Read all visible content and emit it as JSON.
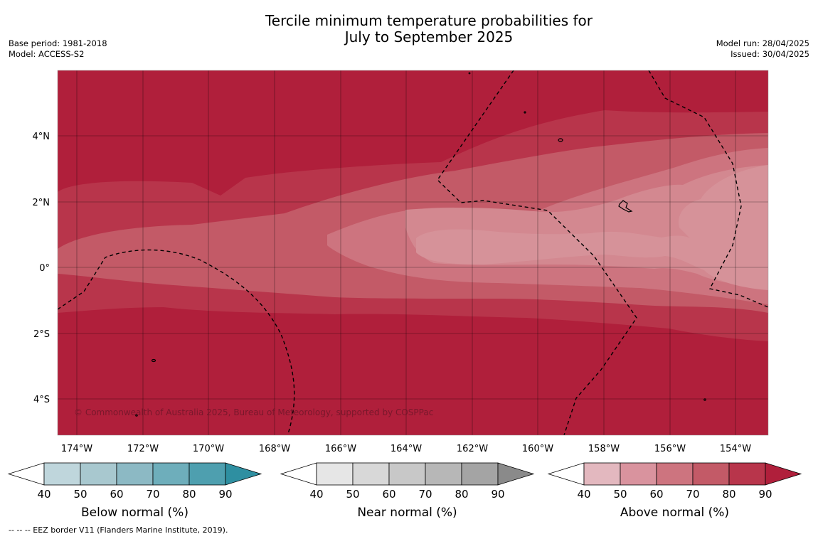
{
  "title": {
    "line1": "Tercile minimum temperature probabilities for",
    "line2": "July to September 2025"
  },
  "meta_left": {
    "base_period": "Base period: 1981-2018",
    "model": "Model: ACCESS-S2"
  },
  "meta_right": {
    "model_run": "Model run: 28/04/2025",
    "issued": "Issued: 30/04/2025"
  },
  "map": {
    "copyright": "© Commonwealth of Australia 2025, Bureau of Meteorology, supported by COSPPac",
    "lat_labels": [
      "4°N",
      "2°N",
      "0°",
      "2°S",
      "4°S"
    ],
    "lon_labels": [
      "174°W",
      "172°W",
      "170°W",
      "168°W",
      "166°W",
      "164°W",
      "162°W",
      "160°W",
      "158°W",
      "156°W",
      "154°W"
    ]
  },
  "colorbars": [
    {
      "title": "Below normal (%)",
      "ticks": [
        "40",
        "50",
        "60",
        "70",
        "80",
        "90"
      ],
      "colors": [
        "#bfd6dc",
        "#a8c8cf",
        "#8cb9c4",
        "#6eaebb",
        "#4e9faf",
        "#2e8fa1"
      ]
    },
    {
      "title": "Near normal (%)",
      "ticks": [
        "40",
        "50",
        "60",
        "70",
        "80",
        "90"
      ],
      "colors": [
        "#e6e6e6",
        "#d8d8d8",
        "#c8c8c8",
        "#b7b7b7",
        "#a4a4a4",
        "#8a8a8a"
      ]
    },
    {
      "title": "Above normal (%)",
      "ticks": [
        "40",
        "50",
        "60",
        "70",
        "80",
        "90"
      ],
      "colors": [
        "#e3b8bf",
        "#d9939e",
        "#cd747f",
        "#c35a67",
        "#b8354b",
        "#b01f3b"
      ]
    }
  ],
  "footer": "--  --  -- EEZ border V11 (Flanders Marine Institute, 2019)."
}
